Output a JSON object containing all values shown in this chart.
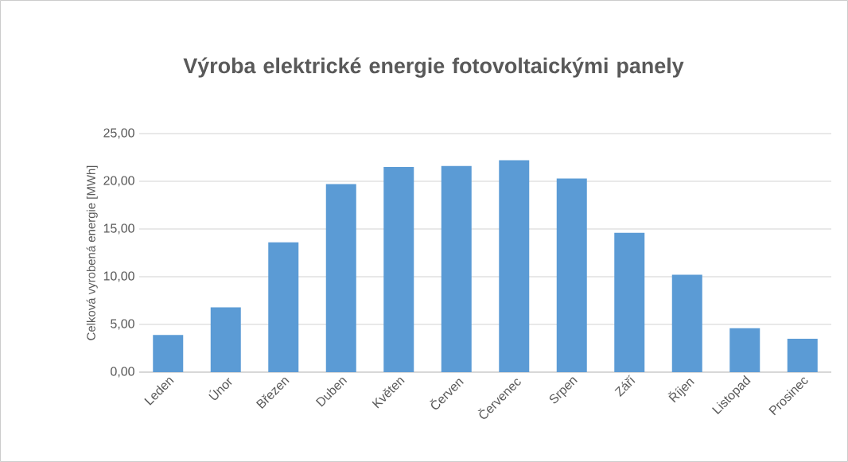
{
  "chart_data": {
    "type": "bar",
    "title": "Výroba elektrické energie fotovoltaickými panely",
    "ylabel": "Celková vyrobená energie [MWh]",
    "categories": [
      "Leden",
      "Únor",
      "Březen",
      "Duben",
      "Květen",
      "Červen",
      "Červenec",
      "Srpen",
      "Září",
      "Říjen",
      "Listopad",
      "Prosinec"
    ],
    "values": [
      3.9,
      6.8,
      13.6,
      19.7,
      21.5,
      21.6,
      22.2,
      20.3,
      14.6,
      10.2,
      4.6,
      3.5
    ],
    "color": "#5b9bd5",
    "ylim": [
      0,
      25
    ],
    "yticks": [
      {
        "value": 0,
        "label": "0,00"
      },
      {
        "value": 5,
        "label": "5,00"
      },
      {
        "value": 10,
        "label": "10,00"
      },
      {
        "value": 15,
        "label": "15,00"
      },
      {
        "value": 20,
        "label": "20,00"
      },
      {
        "value": 25,
        "label": "25,00"
      }
    ],
    "grid": "y"
  }
}
